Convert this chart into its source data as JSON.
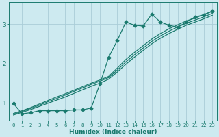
{
  "xlabel": "Humidex (Indice chaleur)",
  "background_color": "#cdeaf0",
  "grid_color": "#aacdd8",
  "line_color": "#1a7a6e",
  "xlim": [
    -0.5,
    23.5
  ],
  "ylim": [
    0.55,
    3.55
  ],
  "yticks": [
    1,
    2,
    3
  ],
  "xticks": [
    0,
    1,
    2,
    3,
    4,
    5,
    6,
    7,
    8,
    9,
    10,
    11,
    12,
    13,
    14,
    15,
    16,
    17,
    18,
    19,
    20,
    21,
    22,
    23
  ],
  "line_jagged_x": [
    0,
    1,
    2,
    3,
    4,
    5,
    6,
    7,
    8,
    9,
    10,
    11,
    12,
    13,
    14,
    15,
    16,
    17,
    18,
    19,
    20,
    21,
    22,
    23
  ],
  "line_jagged_y": [
    0.98,
    0.72,
    0.75,
    0.8,
    0.8,
    0.8,
    0.8,
    0.82,
    0.82,
    0.87,
    1.48,
    2.15,
    2.58,
    3.05,
    2.97,
    2.95,
    3.25,
    3.05,
    2.97,
    2.92,
    3.05,
    3.18,
    3.23,
    3.33
  ],
  "line_top_x": [
    0,
    1,
    2,
    3,
    4,
    5,
    6,
    7,
    8,
    9,
    10,
    11,
    12,
    13,
    14,
    15,
    16,
    17,
    18,
    19,
    20,
    21,
    22,
    23
  ],
  "line_top_y": [
    0.73,
    0.8,
    0.88,
    0.97,
    1.06,
    1.15,
    1.23,
    1.32,
    1.41,
    1.5,
    1.58,
    1.67,
    1.88,
    2.1,
    2.28,
    2.45,
    2.62,
    2.76,
    2.88,
    2.98,
    3.08,
    3.15,
    3.24,
    3.32
  ],
  "line_mid_x": [
    0,
    1,
    2,
    3,
    4,
    5,
    6,
    7,
    8,
    9,
    10,
    11,
    12,
    13,
    14,
    15,
    16,
    17,
    18,
    19,
    20,
    21,
    22,
    23
  ],
  "line_mid_y": [
    0.71,
    0.78,
    0.86,
    0.94,
    1.03,
    1.11,
    1.2,
    1.29,
    1.38,
    1.47,
    1.55,
    1.64,
    1.83,
    2.04,
    2.22,
    2.39,
    2.56,
    2.7,
    2.82,
    2.93,
    3.02,
    3.1,
    3.18,
    3.27
  ],
  "line_bot_x": [
    0,
    1,
    2,
    3,
    4,
    5,
    6,
    7,
    8,
    9,
    10,
    11,
    12,
    13,
    14,
    15,
    16,
    17,
    18,
    19,
    20,
    21,
    22,
    23
  ],
  "line_bot_y": [
    0.69,
    0.76,
    0.83,
    0.91,
    0.99,
    1.07,
    1.15,
    1.24,
    1.33,
    1.42,
    1.5,
    1.6,
    1.78,
    1.98,
    2.16,
    2.33,
    2.5,
    2.64,
    2.76,
    2.87,
    2.97,
    3.05,
    3.13,
    3.22
  ]
}
